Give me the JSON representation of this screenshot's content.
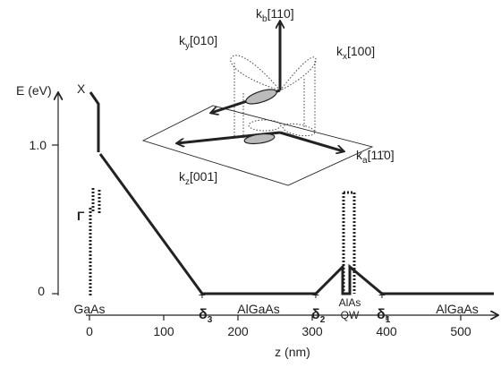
{
  "axes": {
    "y_label": "E (eV)",
    "y_ticks": [
      "0",
      "1.0"
    ],
    "x_label": "z (nm)",
    "x_ticks": [
      "0",
      "100",
      "200",
      "300",
      "400",
      "500"
    ]
  },
  "band_labels": {
    "upper": "X",
    "lower": "Γ"
  },
  "regions": [
    "GaAs",
    "AlGaAs",
    "AlAs",
    "QW",
    "AlGaAs"
  ],
  "interfaces": [
    {
      "symbol": "δ",
      "sub": "3"
    },
    {
      "symbol": "δ",
      "sub": "2"
    },
    {
      "symbol": "δ",
      "sub": "1"
    }
  ],
  "inset": {
    "axes": [
      {
        "symbol": "k",
        "sub": "b",
        "direction": "[110]"
      },
      {
        "symbol": "k",
        "sub": "y",
        "direction": "[010]"
      },
      {
        "symbol": "k",
        "sub": "x",
        "direction": "[100]"
      },
      {
        "symbol": "k",
        "sub": "a",
        "direction": "[11̄0]"
      },
      {
        "symbol": "k",
        "sub": "z",
        "direction": "[001]"
      }
    ]
  }
}
